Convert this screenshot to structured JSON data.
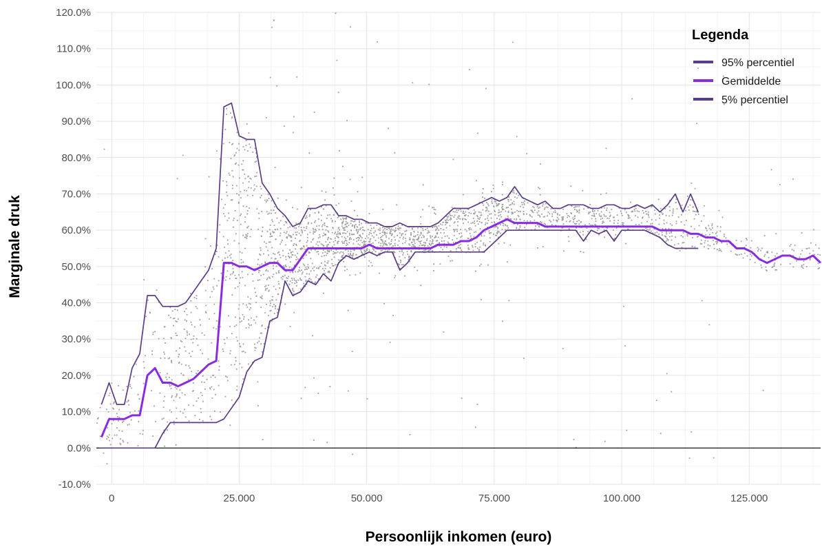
{
  "chart_data": {
    "type": "line",
    "xlabel": "Persoonlijk inkomen (euro)",
    "ylabel": "Marginale druk",
    "xlim": [
      -3000,
      139000
    ],
    "ylim": [
      -10,
      120
    ],
    "x_ticks": [
      0,
      25000,
      50000,
      75000,
      100000,
      125000
    ],
    "x_tick_labels": [
      "0",
      "25.000",
      "50.000",
      "75.000",
      "100.000",
      "125.000"
    ],
    "y_ticks": [
      -10,
      0,
      10,
      20,
      30,
      40,
      50,
      60,
      70,
      80,
      90,
      100,
      110,
      120
    ],
    "y_tick_labels": [
      "-10.0%",
      "0.0%",
      "10.0%",
      "20.0%",
      "30.0%",
      "40.0%",
      "50.0%",
      "60.0%",
      "70.0%",
      "80.0%",
      "90.0%",
      "100.0%",
      "110.0%",
      "120.0%"
    ],
    "grid": true,
    "reference_line_y": 0,
    "legend": {
      "title": "Legenda",
      "position": "top-right",
      "entries": [
        "95% percentiel",
        "Gemiddelde",
        "5% percentiel"
      ]
    },
    "scatter_color": "#9e9e9e",
    "series": [
      {
        "name": "95% percentiel",
        "color": "#5a3d8a",
        "x": [
          -2000,
          -500,
          1000,
          2500,
          4000,
          5500,
          7000,
          8500,
          10000,
          11500,
          13000,
          14500,
          16000,
          17500,
          19000,
          20500,
          22000,
          23500,
          25000,
          26500,
          28000,
          29500,
          31000,
          32500,
          34000,
          35500,
          37000,
          38500,
          40000,
          41500,
          43000,
          44500,
          46000,
          47500,
          49000,
          50500,
          52000,
          53500,
          55000,
          56500,
          58000,
          59500,
          61000,
          62500,
          64000,
          65500,
          67000,
          68500,
          70000,
          71500,
          73000,
          74500,
          76000,
          77500,
          79000,
          80500,
          82000,
          83500,
          85000,
          86500,
          88000,
          89500,
          91000,
          92500,
          94000,
          95500,
          97000,
          98500,
          100000,
          101500,
          103000,
          104500,
          106000,
          107500,
          109000,
          110500,
          112000,
          113500,
          115000
        ],
        "values": [
          12,
          18,
          12,
          12,
          22,
          26,
          42,
          42,
          39,
          39,
          39,
          40,
          43,
          46,
          49,
          55,
          94,
          95,
          86,
          85,
          85,
          73,
          70,
          66,
          64,
          61,
          62,
          66,
          66,
          67,
          67,
          64,
          64,
          63,
          63,
          62,
          62,
          61,
          61,
          62,
          61,
          61,
          61,
          61,
          62,
          64,
          66,
          66,
          66,
          67,
          68,
          69,
          68,
          69,
          72,
          69,
          68,
          67,
          68,
          66,
          66,
          67,
          67,
          67,
          66,
          66,
          67,
          67,
          66,
          66,
          67,
          66,
          67,
          65,
          67,
          70,
          65,
          70,
          65
        ]
      },
      {
        "name": "Gemiddelde",
        "color": "#8a2be2",
        "x": [
          -2000,
          -500,
          1000,
          2500,
          4000,
          5500,
          7000,
          8500,
          10000,
          11500,
          13000,
          14500,
          16000,
          17500,
          19000,
          20500,
          22000,
          23500,
          25000,
          26500,
          28000,
          29500,
          31000,
          32500,
          34000,
          35500,
          37000,
          38500,
          40000,
          41500,
          43000,
          44500,
          46000,
          47500,
          49000,
          50500,
          52000,
          53500,
          55000,
          56500,
          58000,
          59500,
          61000,
          62500,
          64000,
          65500,
          67000,
          68500,
          70000,
          71500,
          73000,
          74500,
          76000,
          77500,
          79000,
          80500,
          82000,
          83500,
          85000,
          86500,
          88000,
          89500,
          91000,
          92500,
          94000,
          95500,
          97000,
          98500,
          100000,
          101500,
          103000,
          104500,
          106000,
          107500,
          109000,
          110500,
          112000,
          113500,
          115000,
          116500,
          118000,
          119500,
          121000,
          122500,
          124000,
          125500,
          127000,
          128500,
          130000,
          131500,
          133000,
          134500,
          136000,
          137500,
          139000
        ],
        "values": [
          3,
          8,
          8,
          8,
          9,
          9,
          20,
          22,
          18,
          18,
          17,
          18,
          19,
          21,
          23,
          24,
          51,
          51,
          50,
          50,
          49,
          50,
          51,
          51,
          49,
          49,
          52,
          55,
          55,
          55,
          55,
          55,
          55,
          55,
          55,
          56,
          55,
          55,
          55,
          55,
          55,
          55,
          55,
          55,
          56,
          56,
          56,
          57,
          57,
          58,
          60,
          61,
          62,
          63,
          62,
          62,
          62,
          62,
          61,
          61,
          61,
          61,
          61,
          61,
          61,
          61,
          61,
          61,
          61,
          61,
          61,
          61,
          61,
          60,
          60,
          60,
          60,
          59,
          59,
          58,
          58,
          57,
          57,
          55,
          55,
          54,
          52,
          51,
          52,
          53,
          53,
          52,
          52,
          53,
          51
        ]
      },
      {
        "name": "5% percentiel",
        "color": "#5a3d8a",
        "x": [
          -2000,
          -500,
          1000,
          2500,
          4000,
          5500,
          7000,
          8500,
          10000,
          11500,
          13000,
          14500,
          16000,
          17500,
          19000,
          20500,
          22000,
          23500,
          25000,
          26500,
          28000,
          29500,
          31000,
          32500,
          34000,
          35500,
          37000,
          38500,
          40000,
          41500,
          43000,
          44500,
          46000,
          47500,
          49000,
          50500,
          52000,
          53500,
          55000,
          56500,
          58000,
          59500,
          61000,
          62500,
          64000,
          65500,
          67000,
          68500,
          70000,
          71500,
          73000,
          74500,
          76000,
          77500,
          79000,
          80500,
          82000,
          83500,
          85000,
          86500,
          88000,
          89500,
          91000,
          92500,
          94000,
          95500,
          97000,
          98500,
          100000,
          101500,
          103000,
          104500,
          106000,
          107500,
          109000,
          110500,
          112000,
          113500,
          115000
        ],
        "values": [
          0,
          0,
          0,
          0,
          0,
          0,
          0,
          0,
          4,
          7,
          7,
          7,
          7,
          7,
          7,
          7,
          8,
          11,
          14,
          21,
          24,
          25,
          35,
          36,
          46,
          42,
          43,
          46,
          45,
          48,
          46,
          51,
          53,
          52,
          53,
          54,
          53,
          54,
          54,
          49,
          51,
          54,
          54,
          54,
          54,
          54,
          54,
          54,
          54,
          54,
          54,
          56,
          58,
          60,
          60,
          60,
          60,
          60,
          60,
          60,
          60,
          60,
          60,
          57,
          60,
          59,
          60,
          57,
          60,
          60,
          60,
          60,
          59,
          58,
          56,
          55,
          55,
          55,
          55
        ]
      }
    ]
  }
}
